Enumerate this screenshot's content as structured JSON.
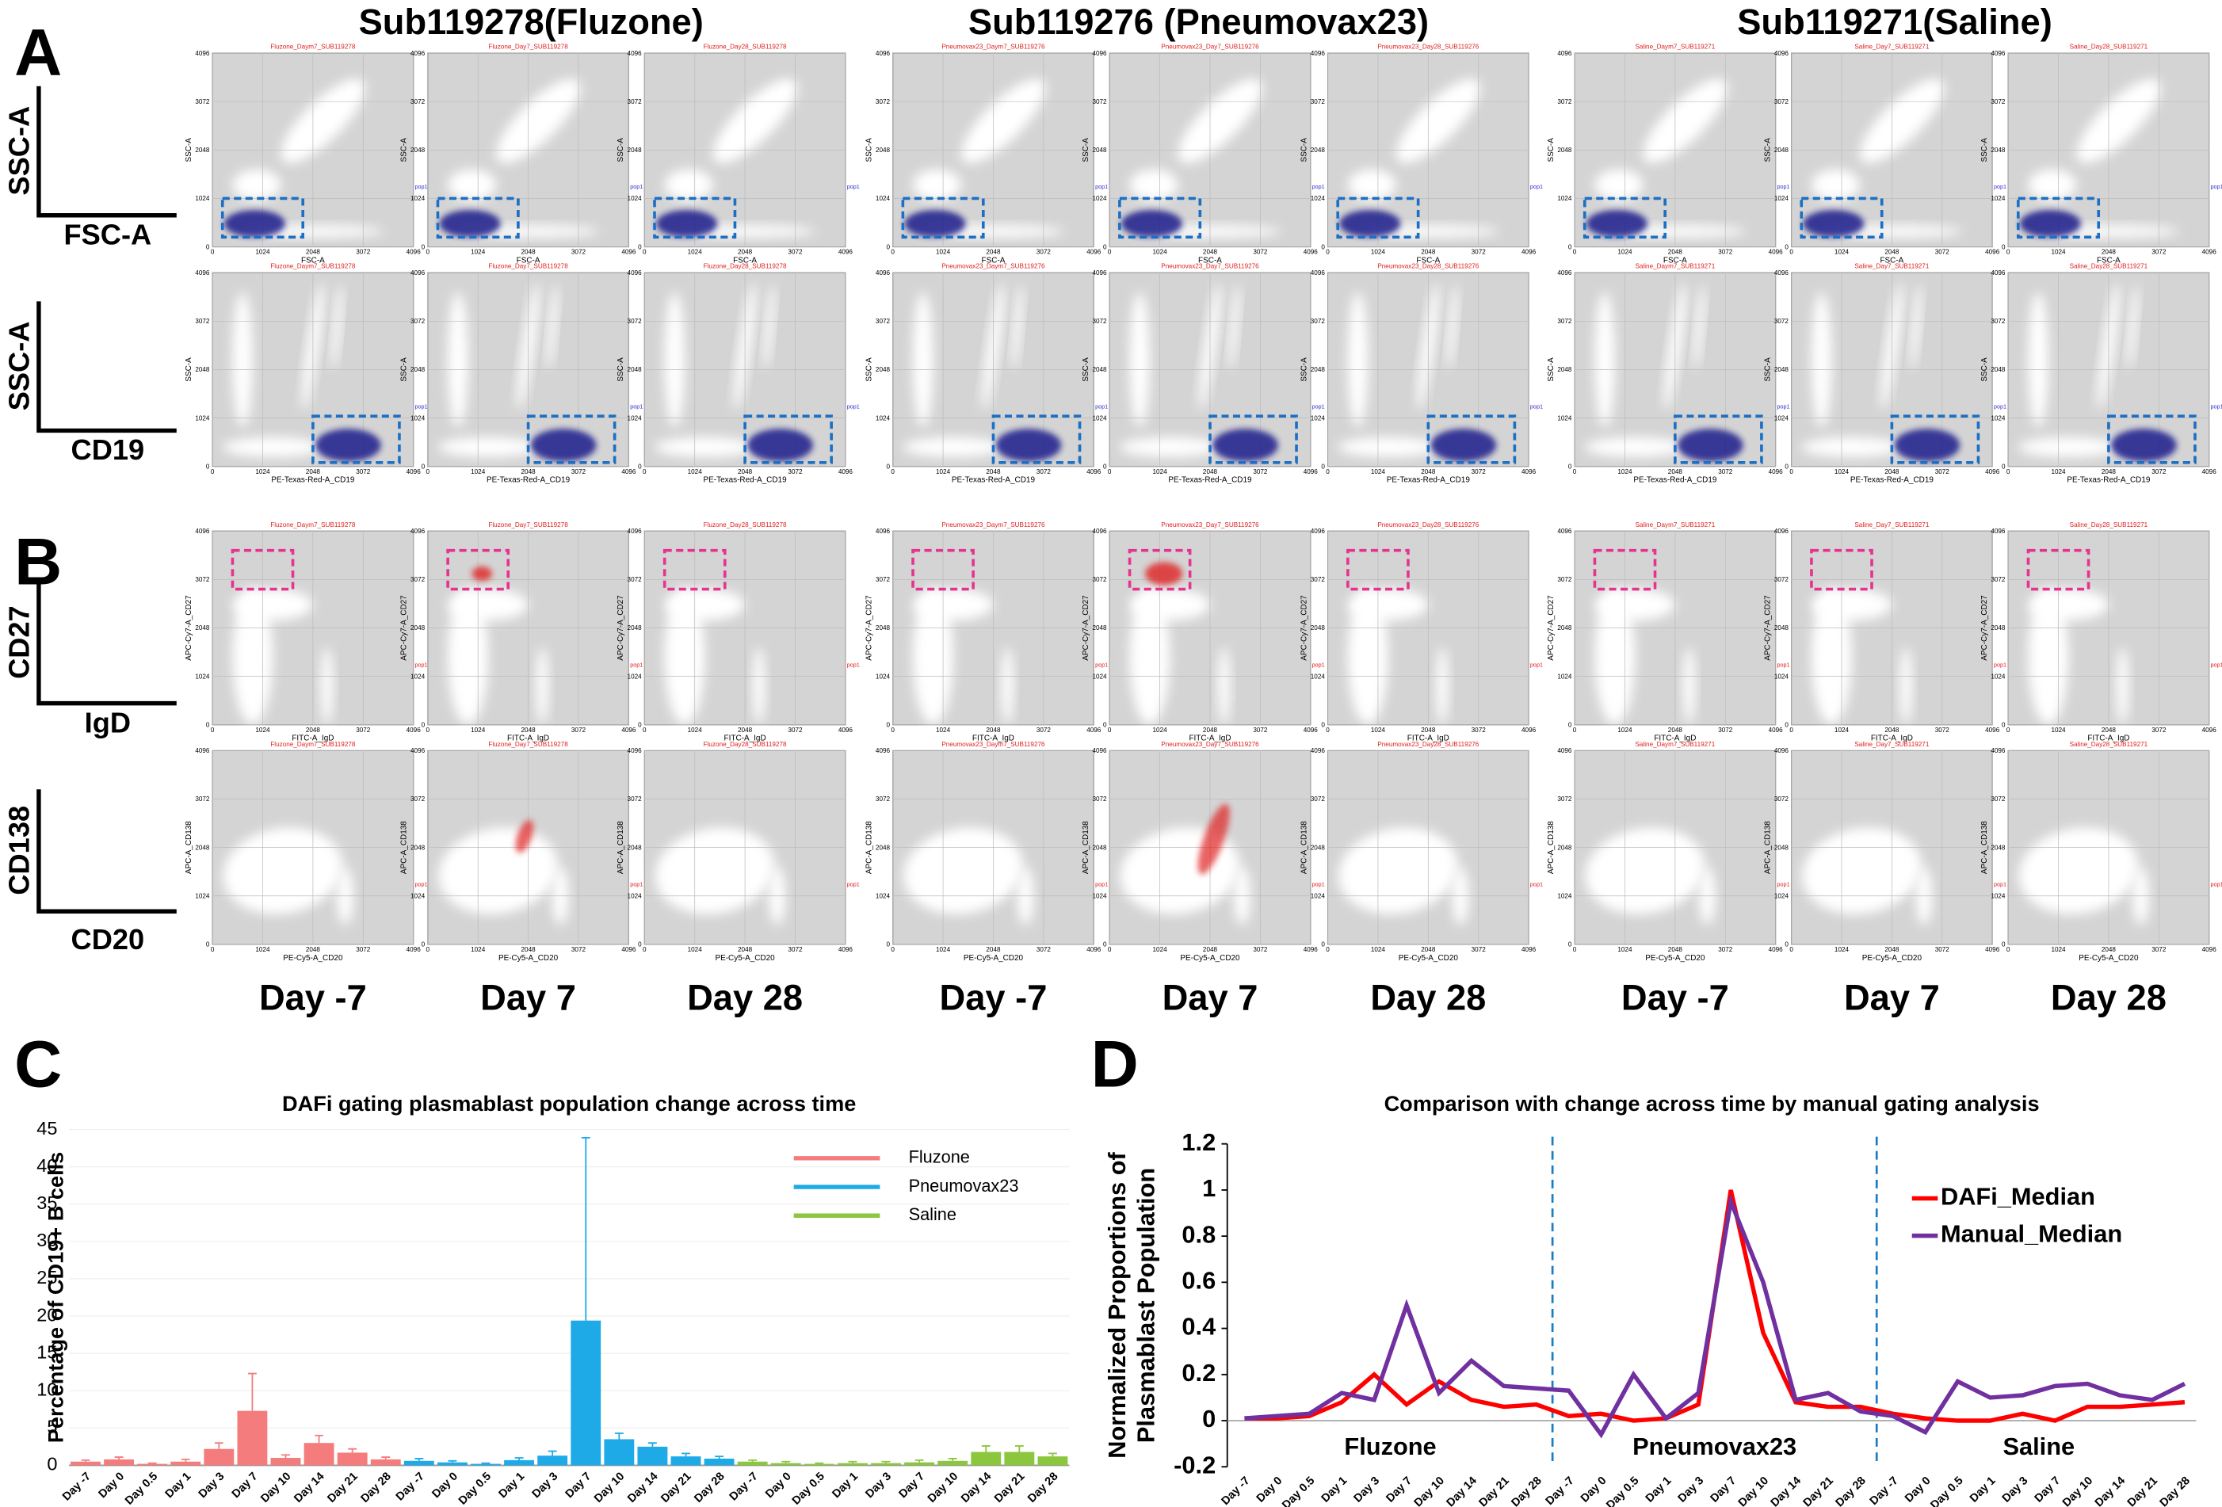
{
  "panel_letters": [
    "A",
    "B",
    "C",
    "D"
  ],
  "flow": {
    "groups": [
      "Sub119278(Fluzone)",
      "Sub119276 (Pneumovax23)",
      "Sub119271(Saline)"
    ],
    "days": [
      "Day -7",
      "Day 7",
      "Day 28"
    ],
    "rows": [
      {
        "y_label": "SSC-A",
        "x_label": "FSC-A",
        "plot_x_axis": "FSC-A",
        "plot_y_axis": "SSC-A"
      },
      {
        "y_label": "SSC-A",
        "x_label": "CD19",
        "plot_x_axis": "PE-Texas-Red-A_CD19",
        "plot_y_axis": "SSC-A"
      },
      {
        "y_label": "CD27",
        "x_label": "IgD",
        "plot_x_axis": "FITC-A_IgD",
        "plot_y_axis": "APC-Cy7-A_CD27"
      },
      {
        "y_label": "CD138",
        "x_label": "CD20",
        "plot_x_axis": "PE-Cy5-A_CD20",
        "plot_y_axis": "APC-A_CD138"
      }
    ],
    "plot_titles": [
      "Fluzone_Daym7_SUB119278",
      "Fluzone_Day7_SUB119278",
      "Fluzone_Day28_SUB119278",
      "Pneumovax23_Daym7_SUB119276",
      "Pneumovax23_Day7_SUB119276",
      "Pneumovax23_Day28_SUB119276",
      "Saline_Daym7_SUB119271",
      "Saline_Day7_SUB119271",
      "Saline_Day28_SUB119271"
    ],
    "gate_label": "pop1",
    "axis_ticks": [
      0,
      1024,
      2048,
      3072,
      4096
    ],
    "axis_lim": [
      0,
      4096
    ]
  },
  "chart_data": [
    {
      "type": "bar",
      "title": "DAFi gating plasmablast population change across time",
      "y_label": "Percentage of CD19+ B cells",
      "categories": [
        "Day -7",
        "Day 0",
        "Day 0.5",
        "Day 1",
        "Day 3",
        "Day 7",
        "Day 10",
        "Day 14",
        "Day 21",
        "Day 28",
        "Day -7",
        "Day 0",
        "Day 0.5",
        "Day 1",
        "Day 3",
        "Day 7",
        "Day 10",
        "Day 14",
        "Day 21",
        "Day 28",
        "Day -7",
        "Day 0",
        "Day 0.5",
        "Day 1",
        "Day 3",
        "Day 7",
        "Day 10",
        "Day 14",
        "Day 21",
        "Day 28"
      ],
      "series": [
        {
          "name": "Fluzone",
          "color": "#f47c7c",
          "values": [
            0.5,
            0.8,
            0.2,
            0.5,
            2.2,
            7.3,
            1,
            3,
            1.7,
            0.8,
            null,
            null,
            null,
            null,
            null,
            null,
            null,
            null,
            null,
            null,
            null,
            null,
            null,
            null,
            null,
            null,
            null,
            null,
            null,
            null
          ],
          "errors": [
            0.2,
            0.3,
            0.1,
            0.3,
            0.8,
            5,
            0.4,
            1,
            0.5,
            0.3,
            null,
            null,
            null,
            null,
            null,
            null,
            null,
            null,
            null,
            null,
            null,
            null,
            null,
            null,
            null,
            null,
            null,
            null,
            null,
            null
          ]
        },
        {
          "name": "Pneumovax23",
          "color": "#1eaae7",
          "values": [
            null,
            null,
            null,
            null,
            null,
            null,
            null,
            null,
            null,
            null,
            0.6,
            0.4,
            0.2,
            0.7,
            1.3,
            19.4,
            3.5,
            2.5,
            1.2,
            0.9,
            null,
            null,
            null,
            null,
            null,
            null,
            null,
            null,
            null,
            null
          ],
          "errors": [
            null,
            null,
            null,
            null,
            null,
            null,
            null,
            null,
            null,
            null,
            0.3,
            0.2,
            0.1,
            0.3,
            0.6,
            24.5,
            0.8,
            0.5,
            0.4,
            0.3,
            null,
            null,
            null,
            null,
            null,
            null,
            null,
            null,
            null,
            null
          ]
        },
        {
          "name": "Saline",
          "color": "#8cc63f",
          "values": [
            null,
            null,
            null,
            null,
            null,
            null,
            null,
            null,
            null,
            null,
            null,
            null,
            null,
            null,
            null,
            null,
            null,
            null,
            null,
            null,
            0.5,
            0.3,
            0.2,
            0.3,
            0.3,
            0.4,
            0.6,
            1.8,
            1.8,
            1.2
          ],
          "errors": [
            null,
            null,
            null,
            null,
            null,
            null,
            null,
            null,
            null,
            null,
            null,
            null,
            null,
            null,
            null,
            null,
            null,
            null,
            null,
            null,
            0.2,
            0.2,
            0.1,
            0.2,
            0.2,
            0.3,
            0.3,
            0.8,
            0.8,
            0.4
          ]
        }
      ],
      "ylim": [
        0,
        45
      ],
      "yticks": [
        0,
        5,
        10,
        15,
        20,
        25,
        30,
        35,
        40,
        45
      ],
      "legend": "top-right"
    },
    {
      "type": "line",
      "title": "Comparison with change across time by manual gating analysis",
      "y_label": "Normalized Proportions of Plasmablast Population",
      "categories": [
        "Day -7",
        "Day 0",
        "Day 0.5",
        "Day 1",
        "Day 3",
        "Day 7",
        "Day 10",
        "Day 14",
        "Day 21",
        "Day 28",
        "Day -7",
        "Day 0",
        "Day 0.5",
        "Day 1",
        "Day 3",
        "Day 7",
        "Day 10",
        "Day 14",
        "Day 21",
        "Day 28",
        "Day -7",
        "Day 0",
        "Day 0.5",
        "Day 1",
        "Day 3",
        "Day 7",
        "Day 10",
        "Day 14",
        "Day 21",
        "Day 28"
      ],
      "series": [
        {
          "name": "DAFi_Median",
          "color": "#ff0000",
          "values": [
            0.01,
            0.01,
            0.02,
            0.08,
            0.2,
            0.07,
            0.17,
            0.09,
            0.06,
            0.07,
            0.02,
            0.03,
            0,
            0.01,
            0.07,
            1,
            0.38,
            0.08,
            0.06,
            0.06,
            0.03,
            0.01,
            0,
            0,
            0.03,
            0,
            0.06,
            0.06,
            0.07,
            0.08
          ]
        },
        {
          "name": "Manual_Median",
          "color": "#7030a0",
          "values": [
            0.01,
            0.02,
            0.03,
            0.12,
            0.09,
            0.5,
            0.12,
            0.26,
            0.15,
            0.14,
            0.13,
            -0.06,
            0.2,
            0.01,
            0.12,
            0.95,
            0.6,
            0.09,
            0.12,
            0.04,
            0.02,
            -0.05,
            0.17,
            0.1,
            0.11,
            0.15,
            0.16,
            0.11,
            0.09,
            0.16
          ]
        }
      ],
      "annotations": [
        "Fluzone",
        "Pneumovax23",
        "Saline"
      ],
      "ylim": [
        -0.2,
        1.2
      ],
      "yticks": [
        -0.2,
        0,
        0.2,
        0.4,
        0.6,
        0.8,
        1,
        1.2
      ],
      "legend": "right"
    }
  ]
}
